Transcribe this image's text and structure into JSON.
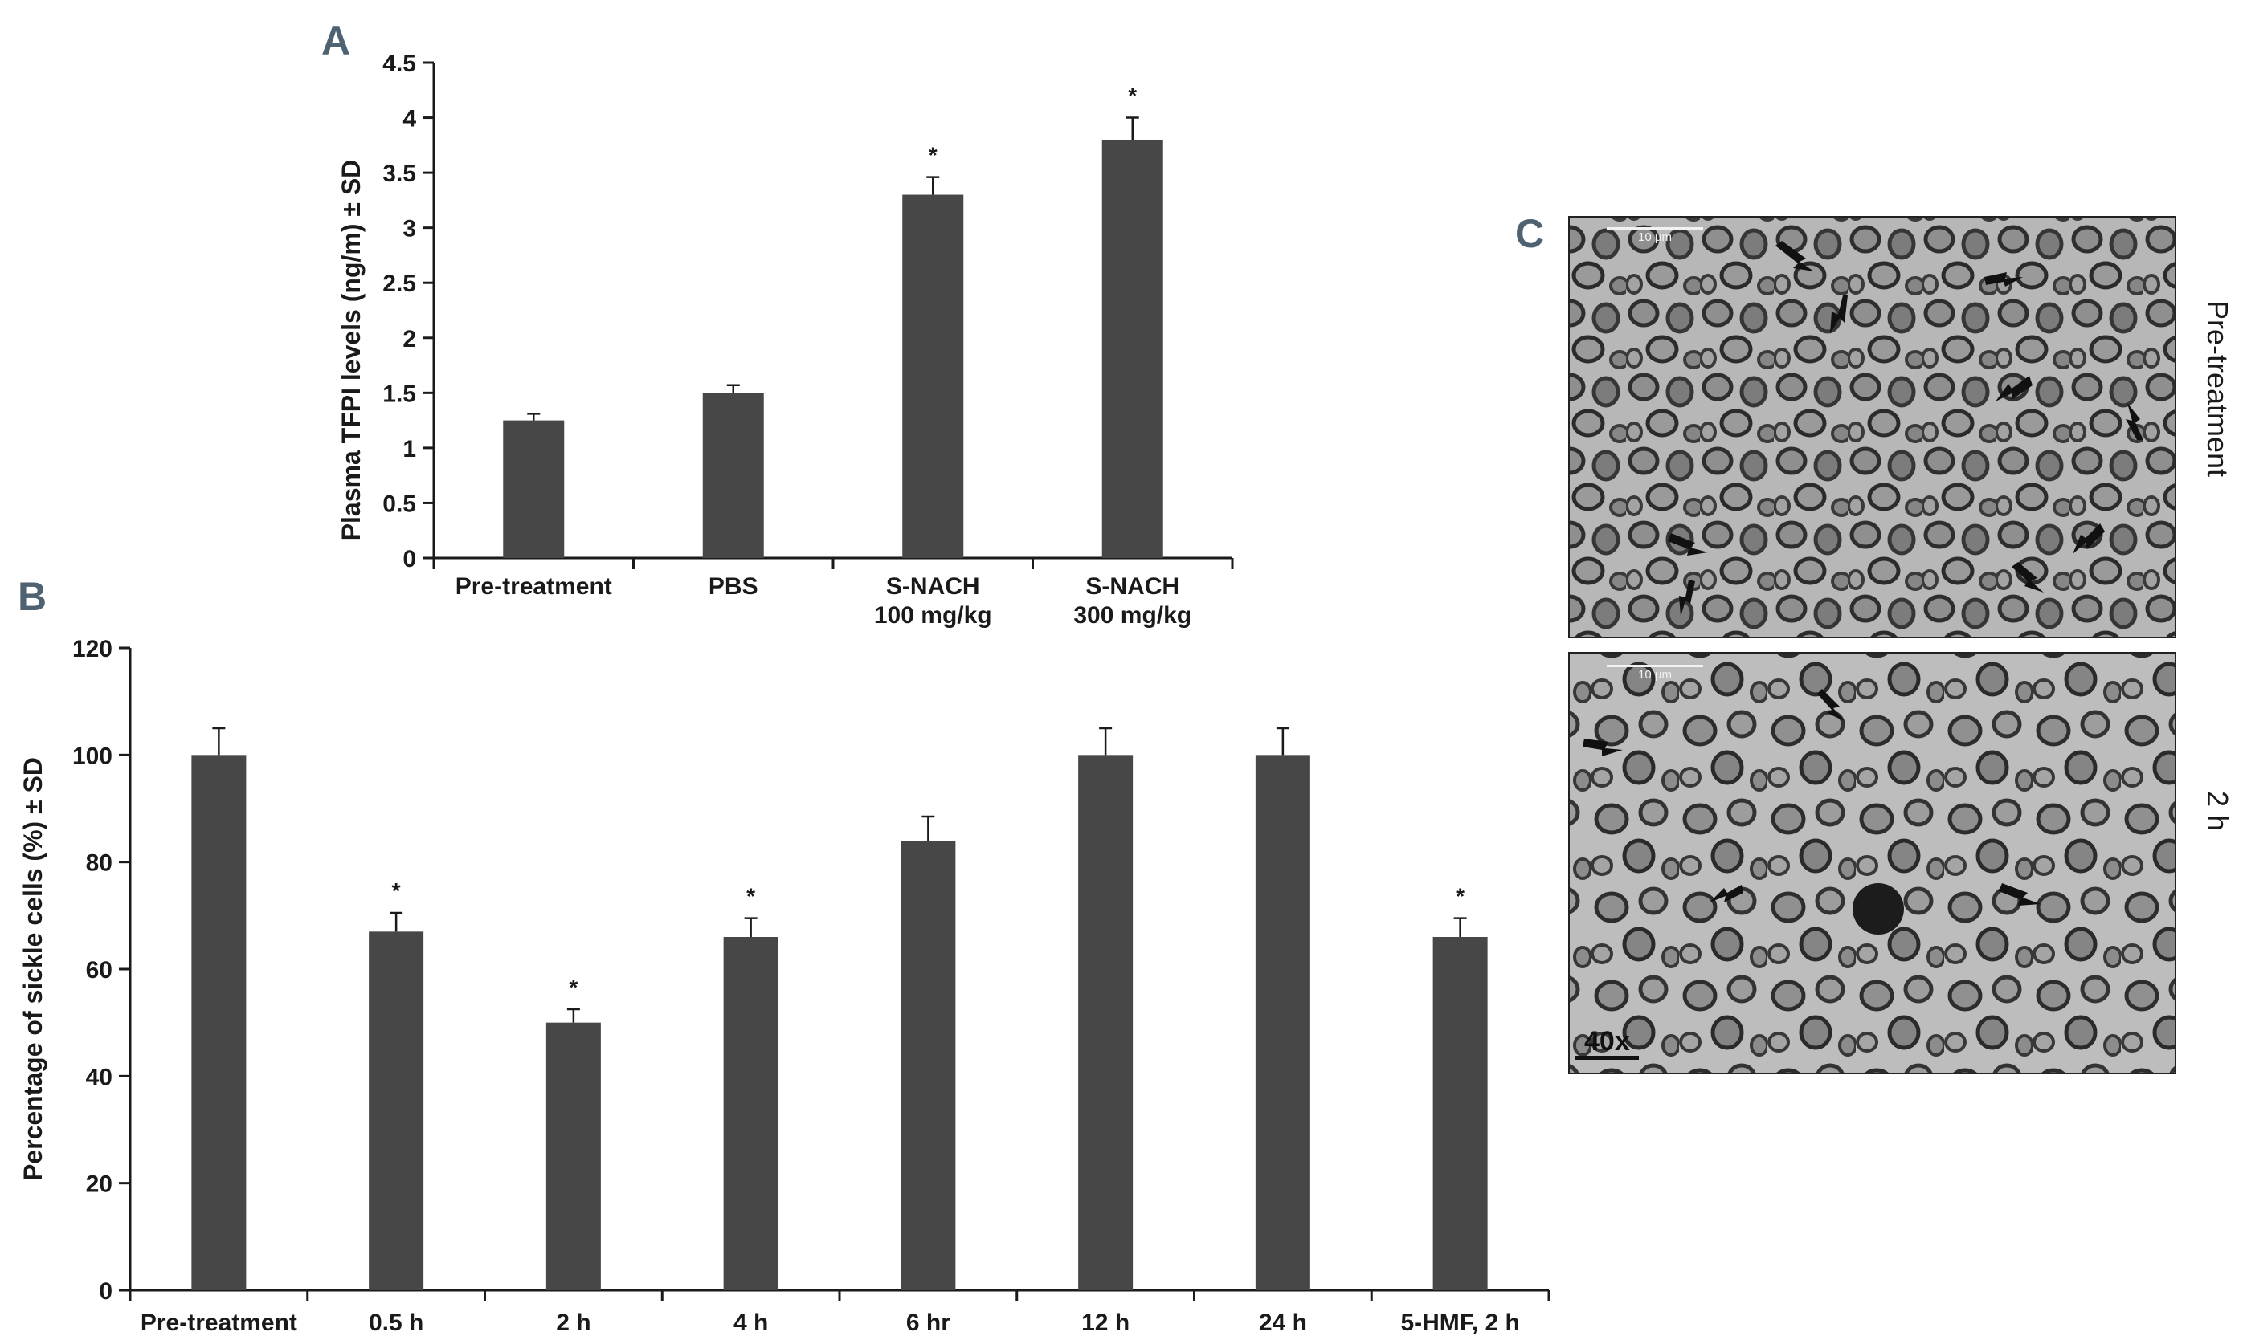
{
  "panels": {
    "a": "A",
    "b": "B",
    "c": "C"
  },
  "colors": {
    "bar": "#474747",
    "axis": "#1a1a1a",
    "letter": "#4f6272"
  },
  "chart_data": [
    {
      "id": "A",
      "type": "bar",
      "title": "",
      "ylabel": "Plasma TFPI levels (ng/m) ± SD",
      "xlabel": "",
      "categories": [
        [
          "Pre-treatment"
        ],
        [
          "PBS"
        ],
        [
          "S-NACH",
          "100 mg/kg"
        ],
        [
          "S-NACH",
          "300 mg/kg"
        ]
      ],
      "values": [
        1.25,
        1.5,
        3.3,
        3.8
      ],
      "errors": [
        0.06,
        0.07,
        0.16,
        0.2
      ],
      "significance": [
        "",
        "",
        "*",
        "*"
      ],
      "ylim": [
        0,
        4.5
      ],
      "yticks": [
        0,
        0.5,
        1,
        1.5,
        2,
        2.5,
        3,
        3.5,
        4,
        4.5
      ],
      "ytick_labels": [
        "0",
        "0.5",
        "1",
        "1.5",
        "2",
        "2.5",
        "3",
        "3.5",
        "4",
        "4.5"
      ],
      "grid": false
    },
    {
      "id": "B",
      "type": "bar",
      "title": "",
      "ylabel": "Percentage of sickle cells (%) ± SD",
      "xlabel": "",
      "categories": [
        [
          "Pre-treatment"
        ],
        [
          "0.5 h"
        ],
        [
          "2 h"
        ],
        [
          "4 h"
        ],
        [
          "6 hr"
        ],
        [
          "12 h"
        ],
        [
          "24 h"
        ],
        [
          "5-HMF, 2 h"
        ]
      ],
      "values": [
        100,
        67,
        50,
        66,
        84,
        100,
        100,
        66
      ],
      "errors": [
        5,
        3.5,
        2.5,
        3.5,
        4.5,
        5,
        5,
        3.5
      ],
      "significance": [
        "",
        "*",
        "*",
        "*",
        "",
        "",
        "",
        "*"
      ],
      "ylim": [
        0,
        120
      ],
      "yticks": [
        0,
        20,
        40,
        60,
        80,
        100,
        120
      ],
      "ytick_labels": [
        "0",
        "20",
        "40",
        "60",
        "80",
        "100",
        "120"
      ],
      "grid": false
    }
  ],
  "micrographs": {
    "top_label": "Pre-treatment",
    "bottom_label": "2 h",
    "scale_text": "10 μm",
    "magnification": "40x"
  }
}
